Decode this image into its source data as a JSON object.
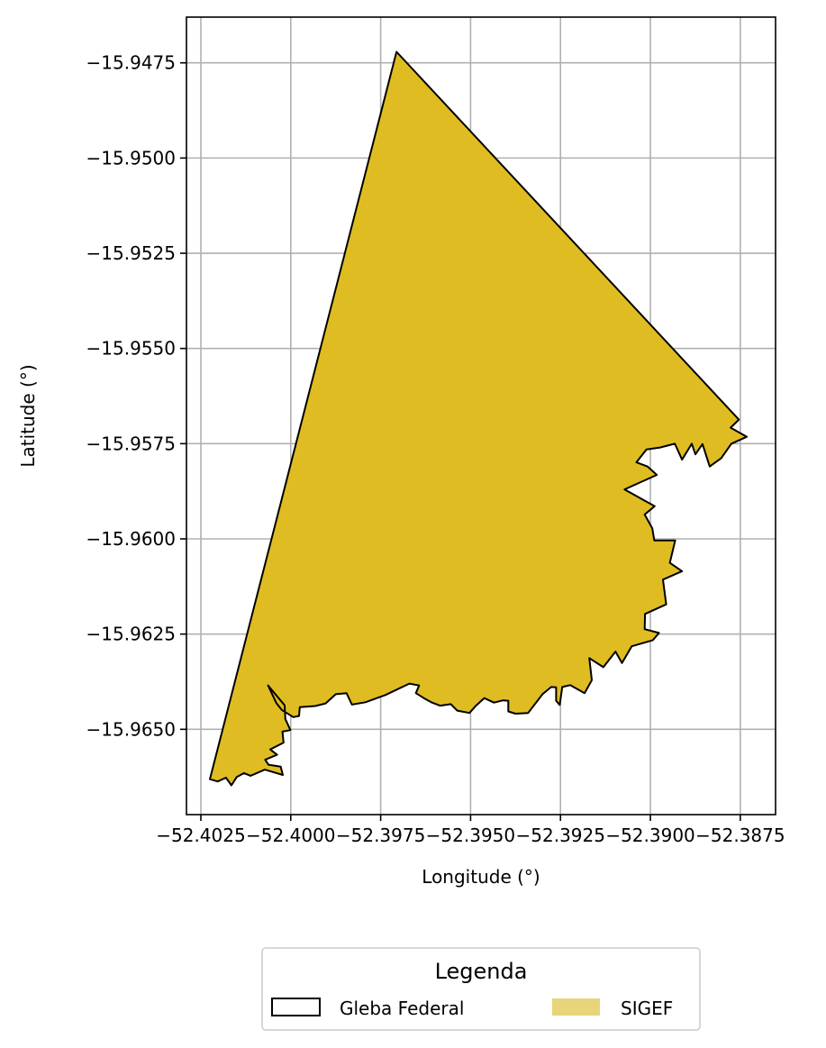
{
  "chart_data": {
    "type": "map",
    "xlabel": "Longitude (°)",
    "ylabel": "Latitude (°)",
    "xlim": [
      -52.4029,
      -52.38652
    ],
    "ylim": [
      -15.96724,
      -15.9463
    ],
    "grid": true,
    "x_ticks": [
      -52.4025,
      -52.4,
      -52.3975,
      -52.395,
      -52.3925,
      -52.39,
      -52.3875
    ],
    "x_tick_labels": [
      "−52.4025",
      "−52.4000",
      "−52.3975",
      "−52.3950",
      "−52.3925",
      "−52.3900",
      "−52.3875"
    ],
    "y_ticks": [
      -15.9475,
      -15.95,
      -15.9525,
      -15.955,
      -15.9575,
      -15.96,
      -15.9625,
      -15.965
    ],
    "y_tick_labels": [
      "−15.9475",
      "−15.9500",
      "−15.9525",
      "−15.9550",
      "−15.9575",
      "−15.9600",
      "−15.9625",
      "−15.9650"
    ],
    "legend": {
      "title": "Legenda",
      "placement": "bottom-center",
      "entries": [
        {
          "label": "Gleba Federal",
          "style": "outline",
          "color": "#000000"
        },
        {
          "label": "SIGEF",
          "style": "fill",
          "color": "#e8d47a"
        }
      ]
    },
    "polygon": {
      "fill_color": "#dfbd22",
      "edge_color": "#000000",
      "coords": [
        [
          -52.39706,
          -15.94721
        ],
        [
          -52.38754,
          -15.95687
        ],
        [
          -52.38777,
          -15.95708
        ],
        [
          -52.38732,
          -15.95732
        ],
        [
          -52.38775,
          -15.9575
        ],
        [
          -52.38803,
          -15.95788
        ],
        [
          -52.38835,
          -15.9581
        ],
        [
          -52.38855,
          -15.95751
        ],
        [
          -52.38875,
          -15.95778
        ],
        [
          -52.38885,
          -15.9575
        ],
        [
          -52.38912,
          -15.95792
        ],
        [
          -52.38932,
          -15.9575
        ],
        [
          -52.38973,
          -15.9576
        ],
        [
          -52.39011,
          -15.95765
        ],
        [
          -52.39039,
          -15.95799
        ],
        [
          -52.39008,
          -15.9581
        ],
        [
          -52.38982,
          -15.95832
        ],
        [
          -52.39072,
          -15.9587
        ],
        [
          -52.38988,
          -15.95914
        ],
        [
          -52.39016,
          -15.95936
        ],
        [
          -52.38995,
          -15.95972
        ],
        [
          -52.38989,
          -15.96004
        ],
        [
          -52.38931,
          -15.96004
        ],
        [
          -52.38946,
          -15.96063
        ],
        [
          -52.38912,
          -15.96085
        ],
        [
          -52.38965,
          -15.96107
        ],
        [
          -52.38956,
          -15.96172
        ],
        [
          -52.39015,
          -15.96197
        ],
        [
          -52.39016,
          -15.96237
        ],
        [
          -52.38976,
          -15.96247
        ],
        [
          -52.38993,
          -15.96266
        ],
        [
          -52.39052,
          -15.96282
        ],
        [
          -52.39079,
          -15.96326
        ],
        [
          -52.39097,
          -15.96296
        ],
        [
          -52.39131,
          -15.96337
        ],
        [
          -52.3917,
          -15.96313
        ],
        [
          -52.39163,
          -15.96371
        ],
        [
          -52.39183,
          -15.96405
        ],
        [
          -52.39223,
          -15.96384
        ],
        [
          -52.39245,
          -15.96389
        ],
        [
          -52.39252,
          -15.96436
        ],
        [
          -52.39262,
          -15.96425
        ],
        [
          -52.39262,
          -15.9639
        ],
        [
          -52.39276,
          -15.96389
        ],
        [
          -52.393,
          -15.96408
        ],
        [
          -52.3934,
          -15.96457
        ],
        [
          -52.39375,
          -15.96459
        ],
        [
          -52.39395,
          -15.96453
        ],
        [
          -52.39395,
          -15.96425
        ],
        [
          -52.3941,
          -15.96424
        ],
        [
          -52.39435,
          -15.9643
        ],
        [
          -52.39462,
          -15.96418
        ],
        [
          -52.39485,
          -15.96438
        ],
        [
          -52.39503,
          -15.96457
        ],
        [
          -52.39537,
          -15.96451
        ],
        [
          -52.39555,
          -15.96434
        ],
        [
          -52.39585,
          -15.96438
        ],
        [
          -52.39607,
          -15.9643
        ],
        [
          -52.3963,
          -15.96418
        ],
        [
          -52.39652,
          -15.96405
        ],
        [
          -52.39643,
          -15.96385
        ],
        [
          -52.3967,
          -15.9638
        ],
        [
          -52.39737,
          -15.9641
        ],
        [
          -52.39763,
          -15.96419
        ],
        [
          -52.39792,
          -15.96429
        ],
        [
          -52.3983,
          -15.96435
        ],
        [
          -52.39845,
          -15.96405
        ],
        [
          -52.39875,
          -15.96408
        ],
        [
          -52.39903,
          -15.96432
        ],
        [
          -52.39932,
          -15.96439
        ],
        [
          -52.39975,
          -15.96442
        ],
        [
          -52.39977,
          -15.96465
        ],
        [
          -52.39993,
          -15.96468
        ],
        [
          -52.40025,
          -15.96449
        ],
        [
          -52.4004,
          -15.96431
        ],
        [
          -52.40053,
          -15.96405
        ],
        [
          -52.40063,
          -15.96385
        ],
        [
          -52.40017,
          -15.96437
        ],
        [
          -52.40015,
          -15.96473
        ],
        [
          -52.40001,
          -15.96502
        ],
        [
          -52.40023,
          -15.96506
        ],
        [
          -52.4002,
          -15.96535
        ],
        [
          -52.40057,
          -15.96553
        ],
        [
          -52.40038,
          -15.96567
        ],
        [
          -52.40071,
          -15.9658
        ],
        [
          -52.40062,
          -15.96593
        ],
        [
          -52.40028,
          -15.96598
        ],
        [
          -52.40022,
          -15.9662
        ],
        [
          -52.40072,
          -15.96606
        ],
        [
          -52.40112,
          -15.96622
        ],
        [
          -52.4013,
          -15.96615
        ],
        [
          -52.4015,
          -15.96625
        ],
        [
          -52.40165,
          -15.96647
        ],
        [
          -52.4018,
          -15.96627
        ],
        [
          -52.40203,
          -15.96637
        ],
        [
          -52.40225,
          -15.96631
        ]
      ]
    }
  }
}
